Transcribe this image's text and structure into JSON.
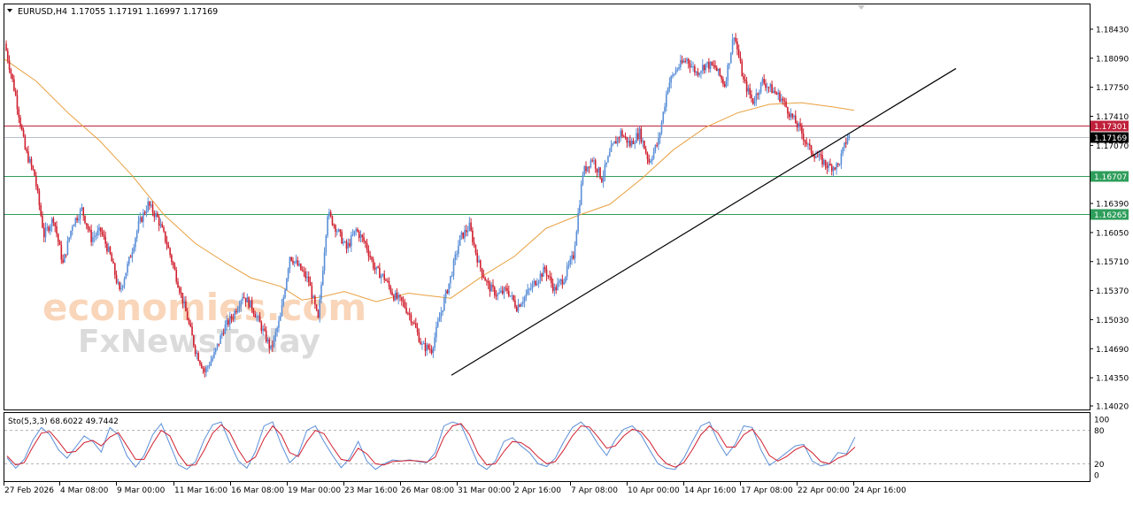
{
  "header": {
    "symbol_label": "EURUSD,H4",
    "ohlc_text": "1.17055 1.17191 1.16997 1.17169"
  },
  "watermark": {
    "line1": "economies.com",
    "line2": "FxNewsToday"
  },
  "colors": {
    "bull": "#5b8fd8",
    "bear": "#d0202f",
    "ma": "#e8a040",
    "resistance_line": "#c0203a",
    "support_line": "#2e9e5b",
    "current_price": "#000000",
    "trendline": "#000000",
    "stoch_main": "#5b8fd8",
    "stoch_signal": "#d0202f"
  },
  "chart_data": [
    {
      "type": "candlestick",
      "title": "EURUSD,H4",
      "ylim": [
        1.1402,
        1.1865
      ],
      "y_ticks": [
        "1.18430",
        "1.18090",
        "1.17750",
        "1.17410",
        "1.17070",
        "1.16390",
        "1.16050",
        "1.15710",
        "1.15370",
        "1.15030",
        "1.14690",
        "1.14350",
        "1.14020"
      ],
      "x_ticks": [
        "27 Feb 2026",
        "4 Mar 08:00",
        "9 Mar 00:00",
        "11 Mar 16:00",
        "16 Mar 08:00",
        "19 Mar 00:00",
        "23 Mar 16:00",
        "26 Mar 08:00",
        "31 Mar 00:00",
        "2 Apr 16:00",
        "7 Apr 08:00",
        "10 Apr 00:00",
        "14 Apr 16:00",
        "17 Apr 08:00",
        "22 Apr 00:00",
        "24 Apr 16:00"
      ],
      "price_levels": [
        {
          "label": "1.17301",
          "value": 1.17301,
          "kind": "resistance"
        },
        {
          "label": "1.17169",
          "value": 1.17169,
          "kind": "current"
        },
        {
          "label": "1.16707",
          "value": 1.16707,
          "kind": "support"
        },
        {
          "label": "1.16265",
          "value": 1.16265,
          "kind": "support"
        }
      ],
      "close_path": [
        [
          0,
          1.1818
        ],
        [
          6,
          1.1765
        ],
        [
          12,
          1.1702
        ],
        [
          18,
          1.1672
        ],
        [
          24,
          1.1602
        ],
        [
          30,
          1.1622
        ],
        [
          36,
          1.1568
        ],
        [
          42,
          1.1615
        ],
        [
          48,
          1.1632
        ],
        [
          54,
          1.1598
        ],
        [
          60,
          1.1607
        ],
        [
          66,
          1.1578
        ],
        [
          72,
          1.1535
        ],
        [
          78,
          1.1572
        ],
        [
          84,
          1.1614
        ],
        [
          90,
          1.1638
        ],
        [
          96,
          1.1622
        ],
        [
          102,
          1.1592
        ],
        [
          108,
          1.1553
        ],
        [
          114,
          1.1512
        ],
        [
          120,
          1.1468
        ],
        [
          126,
          1.1442
        ],
        [
          132,
          1.1462
        ],
        [
          138,
          1.1492
        ],
        [
          144,
          1.1508
        ],
        [
          150,
          1.1532
        ],
        [
          156,
          1.1518
        ],
        [
          162,
          1.1494
        ],
        [
          168,
          1.1468
        ],
        [
          174,
          1.1505
        ],
        [
          180,
          1.1578
        ],
        [
          186,
          1.1564
        ],
        [
          192,
          1.1548
        ],
        [
          198,
          1.1502
        ],
        [
          204,
          1.1628
        ],
        [
          210,
          1.1608
        ],
        [
          216,
          1.1586
        ],
        [
          222,
          1.1608
        ],
        [
          228,
          1.1592
        ],
        [
          234,
          1.1562
        ],
        [
          240,
          1.1552
        ],
        [
          246,
          1.1531
        ],
        [
          252,
          1.1522
        ],
        [
          258,
          1.1502
        ],
        [
          264,
          1.1472
        ],
        [
          270,
          1.1468
        ],
        [
          276,
          1.1512
        ],
        [
          282,
          1.1552
        ],
        [
          288,
          1.1598
        ],
        [
          294,
          1.1612
        ],
        [
          300,
          1.1568
        ],
        [
          306,
          1.1542
        ],
        [
          312,
          1.1532
        ],
        [
          318,
          1.1538
        ],
        [
          324,
          1.1518
        ],
        [
          330,
          1.1532
        ],
        [
          336,
          1.1548
        ],
        [
          342,
          1.1562
        ],
        [
          348,
          1.1538
        ],
        [
          354,
          1.1552
        ],
        [
          360,
          1.1578
        ],
        [
          366,
          1.1675
        ],
        [
          372,
          1.1692
        ],
        [
          378,
          1.1668
        ],
        [
          384,
          1.1702
        ],
        [
          390,
          1.1722
        ],
        [
          396,
          1.1708
        ],
        [
          402,
          1.1722
        ],
        [
          408,
          1.1688
        ],
        [
          414,
          1.1712
        ],
        [
          420,
          1.1778
        ],
        [
          426,
          1.1798
        ],
        [
          432,
          1.1808
        ],
        [
          438,
          1.1792
        ],
        [
          444,
          1.1802
        ],
        [
          450,
          1.1798
        ],
        [
          456,
          1.1778
        ],
        [
          462,
          1.1838
        ],
        [
          468,
          1.1782
        ],
        [
          474,
          1.1758
        ],
        [
          480,
          1.1782
        ],
        [
          486,
          1.1772
        ],
        [
          492,
          1.1762
        ],
        [
          498,
          1.1742
        ],
        [
          504,
          1.1725
        ],
        [
          510,
          1.1702
        ],
        [
          516,
          1.1692
        ],
        [
          522,
          1.1682
        ],
        [
          528,
          1.1683
        ],
        [
          534,
          1.1717
        ]
      ],
      "series": [
        {
          "name": "MA",
          "type": "line",
          "values": [
            [
              0,
              1.1808
            ],
            [
              30,
              1.1782
            ],
            [
              60,
              1.1745
            ],
            [
              90,
              1.1712
            ],
            [
              120,
              1.1672
            ],
            [
              150,
              1.1626
            ],
            [
              180,
              1.1592
            ],
            [
              210,
              1.1568
            ],
            [
              232,
              1.1552
            ],
            [
              260,
              1.1542
            ],
            [
              280,
              1.1526
            ],
            [
              300,
              1.153
            ],
            [
              320,
              1.1536
            ],
            [
              350,
              1.1524
            ],
            [
              380,
              1.1534
            ],
            [
              420,
              1.1528
            ],
            [
              450,
              1.1554
            ],
            [
              480,
              1.1577
            ],
            [
              510,
              1.161
            ],
            [
              540,
              1.1625
            ],
            [
              570,
              1.1638
            ],
            [
              600,
              1.1668
            ],
            [
              630,
              1.1702
            ],
            [
              660,
              1.1728
            ],
            [
              690,
              1.1745
            ],
            [
              720,
              1.1755
            ],
            [
              750,
              1.1757
            ],
            [
              780,
              1.1752
            ],
            [
              800,
              1.1748
            ]
          ]
        }
      ],
      "trendline": {
        "from": [
          510,
          1.1438
        ],
        "to": [
          1080,
          1.1797
        ]
      }
    },
    {
      "type": "line",
      "title": "Sto(5,3,3) 68.6022 49.7442",
      "ylim": [
        0,
        100
      ],
      "y_ticks": [
        "100",
        "80",
        "20",
        "0"
      ],
      "levels": [
        80,
        20
      ],
      "series": [
        {
          "name": "Main",
          "values": [
            31,
            12,
            28,
            62,
            85,
            72,
            45,
            30,
            50,
            70,
            60,
            41,
            85,
            72,
            34,
            14,
            35,
            72,
            92,
            55,
            18,
            10,
            24,
            63,
            90,
            95,
            58,
            25,
            12,
            42,
            88,
            95,
            55,
            22,
            37,
            80,
            88,
            60,
            35,
            13,
            30,
            60,
            25,
            10,
            20,
            27,
            25,
            27,
            24,
            22,
            40,
            88,
            95,
            90,
            55,
            20,
            10,
            25,
            60,
            67,
            52,
            40,
            20,
            15,
            30,
            60,
            85,
            95,
            80,
            55,
            35,
            63,
            82,
            88,
            72,
            45,
            20,
            12,
            10,
            30,
            60,
            88,
            95,
            60,
            35,
            55,
            88,
            85,
            45,
            17,
            28,
            40,
            52,
            55,
            25,
            16,
            20,
            40,
            38,
            68
          ]
        },
        {
          "name": "Signal",
          "values": [
            34,
            18,
            22,
            50,
            75,
            78,
            60,
            40,
            42,
            58,
            62,
            52,
            68,
            76,
            52,
            28,
            28,
            56,
            80,
            70,
            38,
            17,
            18,
            44,
            75,
            90,
            76,
            45,
            22,
            32,
            65,
            88,
            72,
            40,
            33,
            60,
            80,
            74,
            50,
            28,
            25,
            48,
            38,
            20,
            18,
            24,
            25,
            26,
            25,
            23,
            32,
            68,
            88,
            92,
            72,
            38,
            18,
            20,
            42,
            60,
            58,
            48,
            32,
            20,
            24,
            45,
            70,
            88,
            86,
            68,
            48,
            52,
            70,
            82,
            78,
            60,
            36,
            20,
            14,
            22,
            45,
            72,
            88,
            75,
            50,
            50,
            72,
            82,
            62,
            35,
            25,
            33,
            45,
            52,
            40,
            24,
            20,
            30,
            36,
            50
          ]
        }
      ]
    }
  ]
}
